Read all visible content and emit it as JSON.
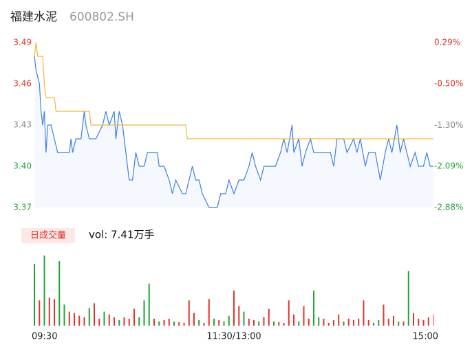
{
  "header": {
    "name": "福建水泥",
    "code": "600802.SH"
  },
  "chart_data": {
    "type": "line",
    "x": [
      0,
      1,
      3,
      4,
      5,
      6,
      7,
      8,
      10,
      12,
      14,
      21,
      22,
      23,
      25,
      28,
      30,
      31,
      33,
      37,
      41,
      43,
      45,
      48,
      49,
      51,
      53,
      55,
      57,
      59,
      61,
      63,
      66,
      68,
      72,
      74,
      75,
      78,
      81,
      83,
      85,
      89,
      91,
      93,
      95,
      97,
      99,
      101,
      105,
      110,
      112,
      115,
      117,
      120,
      123,
      126,
      129,
      131,
      133,
      136,
      138,
      141,
      145,
      148,
      150,
      152,
      155,
      156,
      159,
      161,
      163,
      166,
      168,
      172,
      178,
      180,
      182,
      186,
      188,
      192,
      194,
      196,
      199,
      201,
      205,
      208,
      211,
      213,
      215,
      218,
      220,
      222,
      224,
      226,
      229,
      231,
      234,
      236,
      238,
      240
    ],
    "series": [
      {
        "color": "#3d7fe6",
        "values": [
          3.48,
          3.47,
          3.46,
          3.44,
          3.43,
          3.44,
          3.41,
          3.43,
          3.43,
          3.42,
          3.41,
          3.41,
          3.42,
          3.41,
          3.42,
          3.42,
          3.44,
          3.43,
          3.42,
          3.42,
          3.43,
          3.44,
          3.43,
          3.44,
          3.42,
          3.44,
          3.43,
          3.41,
          3.39,
          3.39,
          3.41,
          3.4,
          3.4,
          3.41,
          3.41,
          3.41,
          3.4,
          3.4,
          3.39,
          3.38,
          3.39,
          3.38,
          3.38,
          3.39,
          3.4,
          3.39,
          3.39,
          3.38,
          3.37,
          3.37,
          3.38,
          3.38,
          3.39,
          3.38,
          3.39,
          3.39,
          3.4,
          3.41,
          3.4,
          3.39,
          3.4,
          3.4,
          3.4,
          3.41,
          3.42,
          3.41,
          3.43,
          3.41,
          3.42,
          3.4,
          3.41,
          3.42,
          3.41,
          3.41,
          3.41,
          3.4,
          3.42,
          3.42,
          3.41,
          3.42,
          3.41,
          3.42,
          3.4,
          3.41,
          3.41,
          3.39,
          3.41,
          3.42,
          3.41,
          3.43,
          3.41,
          3.42,
          3.41,
          3.4,
          3.41,
          3.4,
          3.4,
          3.41,
          3.4,
          3.4
        ]
      },
      {
        "color": "#f2b73a",
        "x": [
          0,
          1,
          2,
          5,
          6,
          7,
          12,
          13,
          33,
          34,
          91,
          92,
          240
        ],
        "values": [
          3.48,
          3.49,
          3.48,
          3.48,
          3.46,
          3.45,
          3.45,
          3.44,
          3.44,
          3.43,
          3.43,
          3.42,
          3.42
        ]
      }
    ],
    "xlim": [
      0,
      240
    ],
    "xticks": [
      {
        "value": 0,
        "label": "09:30"
      },
      {
        "value": 120,
        "label": "11:30/13:00"
      },
      {
        "value": 240,
        "label": "15:00"
      }
    ],
    "ylim": [
      3.37,
      3.49
    ],
    "yticks": [
      3.49,
      3.46,
      3.43,
      {
        "value": 3.4,
        "label": "3.40"
      },
      3.37
    ],
    "ytick_colors": [
      "#e5322d",
      "#e5322d",
      "#888888",
      "#21a336",
      "#21a336"
    ],
    "y2lim": [
      -2.88,
      0.29
    ],
    "y2ticks": [
      {
        "value": 0.29,
        "label": "0.29%"
      },
      {
        "value": -0.5,
        "label": "-0.50%"
      },
      {
        "value": -1.3,
        "label": "-1.30%"
      },
      {
        "value": -2.09,
        "label": "-2.09%"
      },
      {
        "value": -2.88,
        "label": "-2.88%"
      }
    ],
    "area_color": "#f5f8fe",
    "volume": {
      "type": "bar",
      "label": "日成交量",
      "summary": "vol: 7.41万手",
      "x": [
        0,
        3,
        6,
        9,
        12,
        15,
        18,
        21,
        24,
        27,
        30,
        33,
        36,
        39,
        42,
        45,
        48,
        51,
        54,
        57,
        60,
        63,
        66,
        69,
        72,
        75,
        78,
        81,
        84,
        87,
        90,
        93,
        96,
        99,
        102,
        105,
        108,
        111,
        114,
        117,
        120,
        123,
        126,
        129,
        132,
        135,
        138,
        141,
        144,
        147,
        150,
        153,
        156,
        159,
        162,
        165,
        168,
        171,
        174,
        177,
        180,
        183,
        186,
        189,
        192,
        195,
        198,
        201,
        204,
        207,
        210,
        213,
        216,
        219,
        222,
        225,
        228,
        231,
        234,
        237,
        240
      ],
      "values": [
        88,
        36,
        100,
        40,
        38,
        92,
        30,
        20,
        18,
        14,
        12,
        25,
        32,
        10,
        20,
        16,
        12,
        8,
        12,
        10,
        24,
        12,
        36,
        60,
        10,
        6,
        8,
        10,
        6,
        5,
        4,
        36,
        18,
        8,
        4,
        38,
        10,
        8,
        6,
        14,
        50,
        28,
        20,
        10,
        8,
        6,
        12,
        24,
        6,
        5,
        4,
        36,
        16,
        6,
        28,
        10,
        50,
        12,
        10,
        4,
        8,
        16,
        6,
        10,
        8,
        10,
        36,
        8,
        4,
        8,
        30,
        10,
        14,
        6,
        6,
        78,
        18,
        10,
        8,
        12,
        16
      ],
      "colors": [
        "#21a336",
        "#e5322d",
        "#21a336",
        "#e5322d",
        "#e5322d",
        "#21a336",
        "#21a336",
        "#e5322d",
        "#e5322d",
        "#e5322d",
        "#e5322d",
        "#21a336",
        "#e5322d",
        "#e5322d",
        "#21a336",
        "#e5322d",
        "#e5322d",
        "#21a336",
        "#e5322d",
        "#e5322d",
        "#e5322d",
        "#21a336",
        "#21a336",
        "#21a336",
        "#e5322d",
        "#21a336",
        "#e5322d",
        "#e5322d",
        "#21a336",
        "#e5322d",
        "#e5322d",
        "#e5322d",
        "#e5322d",
        "#21a336",
        "#e5322d",
        "#e5322d",
        "#21a336",
        "#e5322d",
        "#21a336",
        "#21a336",
        "#e5322d",
        "#e5322d",
        "#21a336",
        "#e5322d",
        "#e5322d",
        "#21a336",
        "#e5322d",
        "#e5322d",
        "#21a336",
        "#e5322d",
        "#e5322d",
        "#e5322d",
        "#e5322d",
        "#21a336",
        "#e5322d",
        "#e5322d",
        "#21a336",
        "#21a336",
        "#e5322d",
        "#e5322d",
        "#e5322d",
        "#e5322d",
        "#21a336",
        "#e5322d",
        "#e5322d",
        "#e5322d",
        "#e5322d",
        "#e5322d",
        "#21a336",
        "#21a336",
        "#e5322d",
        "#e5322d",
        "#e5322d",
        "#21a336",
        "#e5322d",
        "#21a336",
        "#e5322d",
        "#e5322d",
        "#e5322d",
        "#e5322d",
        "#f4a3a3"
      ],
      "ylim": [
        0,
        100
      ]
    }
  }
}
